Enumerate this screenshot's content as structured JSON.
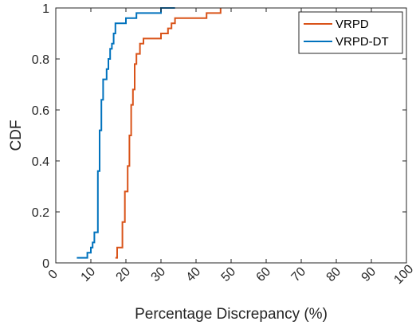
{
  "chart_data": {
    "type": "line",
    "step": true,
    "xlabel": "Percentage Discrepancy (%)",
    "ylabel": "CDF",
    "xlim": [
      0,
      100
    ],
    "ylim": [
      0,
      1
    ],
    "xticks": [
      "0",
      "10",
      "20",
      "30",
      "40",
      "50",
      "60",
      "70",
      "80",
      "90",
      "100"
    ],
    "yticks": [
      "0",
      "0.2",
      "0.4",
      "0.6",
      "0.8",
      "1"
    ],
    "grid": false,
    "legend_position": "top-right",
    "series": [
      {
        "name": "VRPD",
        "color": "#d95319",
        "x": [
          17,
          17.5,
          19,
          19.7,
          20.5,
          21,
          21.5,
          22,
          22.5,
          23,
          24,
          25,
          26,
          30,
          32,
          33,
          34,
          35,
          36,
          38,
          43,
          46,
          47
        ],
        "y": [
          0.02,
          0.06,
          0.16,
          0.28,
          0.38,
          0.5,
          0.62,
          0.68,
          0.78,
          0.82,
          0.86,
          0.88,
          0.88,
          0.9,
          0.92,
          0.94,
          0.96,
          0.96,
          0.96,
          0.96,
          0.98,
          0.98,
          1.0
        ]
      },
      {
        "name": "VRPD-DT",
        "color": "#0072bd",
        "x": [
          6,
          9,
          10,
          10.5,
          11,
          12,
          12.5,
          13,
          13.5,
          14,
          14.5,
          15,
          15.5,
          16,
          16.5,
          17,
          18,
          19,
          20,
          21,
          22,
          23,
          25,
          26,
          30,
          34
        ],
        "y": [
          0.02,
          0.04,
          0.06,
          0.08,
          0.12,
          0.36,
          0.52,
          0.64,
          0.72,
          0.72,
          0.76,
          0.8,
          0.84,
          0.86,
          0.9,
          0.94,
          0.94,
          0.94,
          0.96,
          0.96,
          0.96,
          0.98,
          0.98,
          0.98,
          1.0,
          1.0
        ]
      }
    ]
  }
}
